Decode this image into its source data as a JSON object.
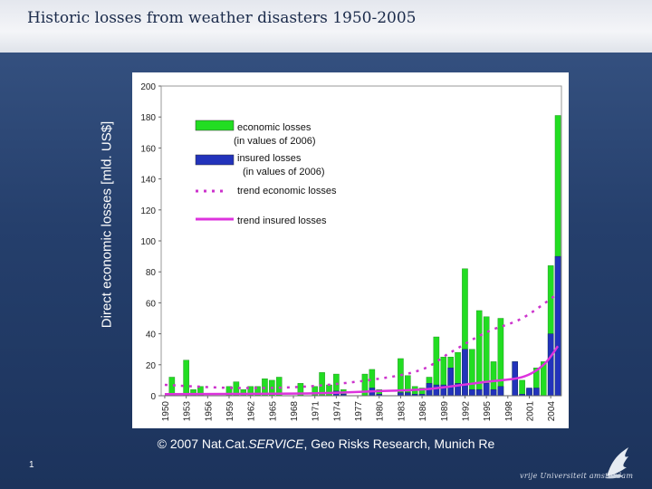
{
  "slide": {
    "title": "Historic losses from weather disasters 1950-2005",
    "ylabel": "Direct economic losses  [mld. US$]",
    "credit_prefix": "© 2007 Nat.Cat.",
    "credit_em": "SERVICE",
    "credit_suffix": ", Geo Risks Research, Munich Re",
    "page_number": "1",
    "logo_text": "vrije Universiteit   amsterdam",
    "logo_icon": "griffin-logo-icon"
  },
  "colors": {
    "economic": "#22dd22",
    "insured": "#2233bb",
    "trend_economic": "#cc33cc",
    "trend_insured": "#dd33dd"
  },
  "chart_data": {
    "type": "bar",
    "title": "",
    "xlabel": "",
    "ylabel": "Direct economic losses  [mld. US$]",
    "ylim": [
      0,
      200
    ],
    "yticks": [
      0,
      20,
      40,
      60,
      80,
      100,
      120,
      140,
      160,
      180,
      200
    ],
    "xlim": [
      1949.5,
      2005.5
    ],
    "xtick_labels": [
      "1950",
      "1953",
      "1956",
      "1959",
      "1962",
      "1965",
      "1968",
      "1971",
      "1974",
      "1977",
      "1980",
      "1983",
      "1986",
      "1989",
      "1992",
      "1995",
      "1998",
      "2001",
      "2004"
    ],
    "categories": [
      1950,
      1951,
      1952,
      1953,
      1954,
      1955,
      1956,
      1957,
      1958,
      1959,
      1960,
      1961,
      1962,
      1963,
      1964,
      1965,
      1966,
      1967,
      1968,
      1969,
      1970,
      1971,
      1972,
      1973,
      1974,
      1975,
      1976,
      1977,
      1978,
      1979,
      1980,
      1981,
      1982,
      1983,
      1984,
      1985,
      1986,
      1987,
      1988,
      1989,
      1990,
      1991,
      1992,
      1993,
      1994,
      1995,
      1996,
      1997,
      1998,
      1999,
      2000,
      2001,
      2002,
      2003,
      2004,
      2005
    ],
    "series": [
      {
        "name": "economic losses (in values of 2006)",
        "values": [
          0,
          12,
          0,
          23,
          4,
          6,
          0,
          0,
          0,
          6,
          9,
          4,
          6,
          6,
          11,
          10,
          12,
          0,
          0,
          8,
          0,
          6,
          15,
          7,
          14,
          4,
          0,
          0,
          14,
          17,
          4,
          0,
          0,
          24,
          13,
          6,
          5,
          12,
          38,
          25,
          25,
          28,
          82,
          30,
          55,
          51,
          22,
          50,
          0,
          22,
          10,
          4,
          18,
          22,
          84,
          181
        ]
      },
      {
        "name": "insured losses (in values of 2006)",
        "values": [
          0,
          0,
          0,
          0,
          0,
          0,
          0,
          0,
          0,
          0,
          0,
          0,
          0,
          0,
          0,
          0,
          0,
          0,
          0,
          0,
          0,
          0,
          0,
          0,
          3,
          1,
          0,
          0,
          0,
          5,
          1,
          0,
          0,
          2,
          2,
          1,
          1,
          8,
          7,
          7,
          18,
          8,
          30,
          4,
          4,
          8,
          4,
          6,
          0,
          22,
          1,
          5,
          5,
          0,
          40,
          90
        ]
      }
    ],
    "trends": [
      {
        "name": "trend economic losses",
        "style": "dotted",
        "points": [
          [
            1950,
            7
          ],
          [
            1960,
            5
          ],
          [
            1970,
            6
          ],
          [
            1980,
            11
          ],
          [
            1986,
            17
          ],
          [
            1990,
            28
          ],
          [
            1995,
            41
          ],
          [
            2000,
            50
          ],
          [
            2005,
            66
          ]
        ]
      },
      {
        "name": "trend insured losses",
        "style": "solid",
        "points": [
          [
            1950,
            1
          ],
          [
            1970,
            1.5
          ],
          [
            1980,
            3
          ],
          [
            1986,
            4
          ],
          [
            1990,
            6
          ],
          [
            1995,
            9
          ],
          [
            2000,
            12
          ],
          [
            2003,
            20
          ],
          [
            2005,
            32
          ]
        ]
      }
    ],
    "legend": {
      "position": "top-left",
      "economic_line1": "economic losses",
      "economic_line2": "(in values of 2006)",
      "insured_line1": "insured losses",
      "insured_line2": "(in values of 2006)",
      "trend_economic": "trend economic losses",
      "trend_insured": "trend insured losses"
    }
  }
}
